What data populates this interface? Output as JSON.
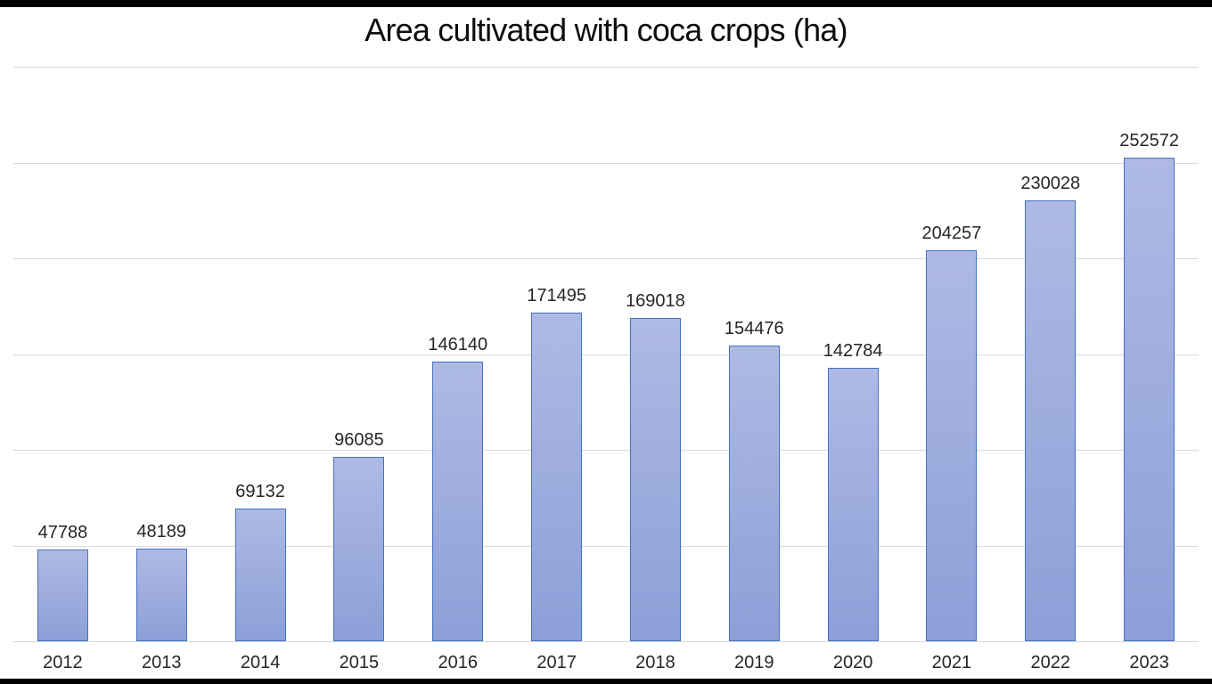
{
  "chart_data": {
    "type": "bar",
    "title": "Area cultivated with coca crops (ha)",
    "categories": [
      "2012",
      "2013",
      "2014",
      "2015",
      "2016",
      "2017",
      "2018",
      "2019",
      "2020",
      "2021",
      "2022",
      "2023"
    ],
    "values": [
      47788,
      48189,
      69132,
      96085,
      146140,
      171495,
      169018,
      154476,
      142784,
      204257,
      230028,
      252572
    ],
    "xlabel": "",
    "ylabel": "",
    "ylim": [
      0,
      300000
    ],
    "gridline_step": 50000,
    "grid": true,
    "legend": "none",
    "data_labels": true,
    "y_axis_tick_labels_visible": false
  },
  "colors": {
    "bar_fill_top": "#aebae4",
    "bar_fill_bottom": "#8c9fd7",
    "bar_border": "#4472c4",
    "gridline": "#d9d9d9",
    "data_label": "#262626",
    "axis_label": "#262626",
    "title": "#0d0d0d",
    "letterbox": "#000000",
    "background": "#ffffff"
  }
}
